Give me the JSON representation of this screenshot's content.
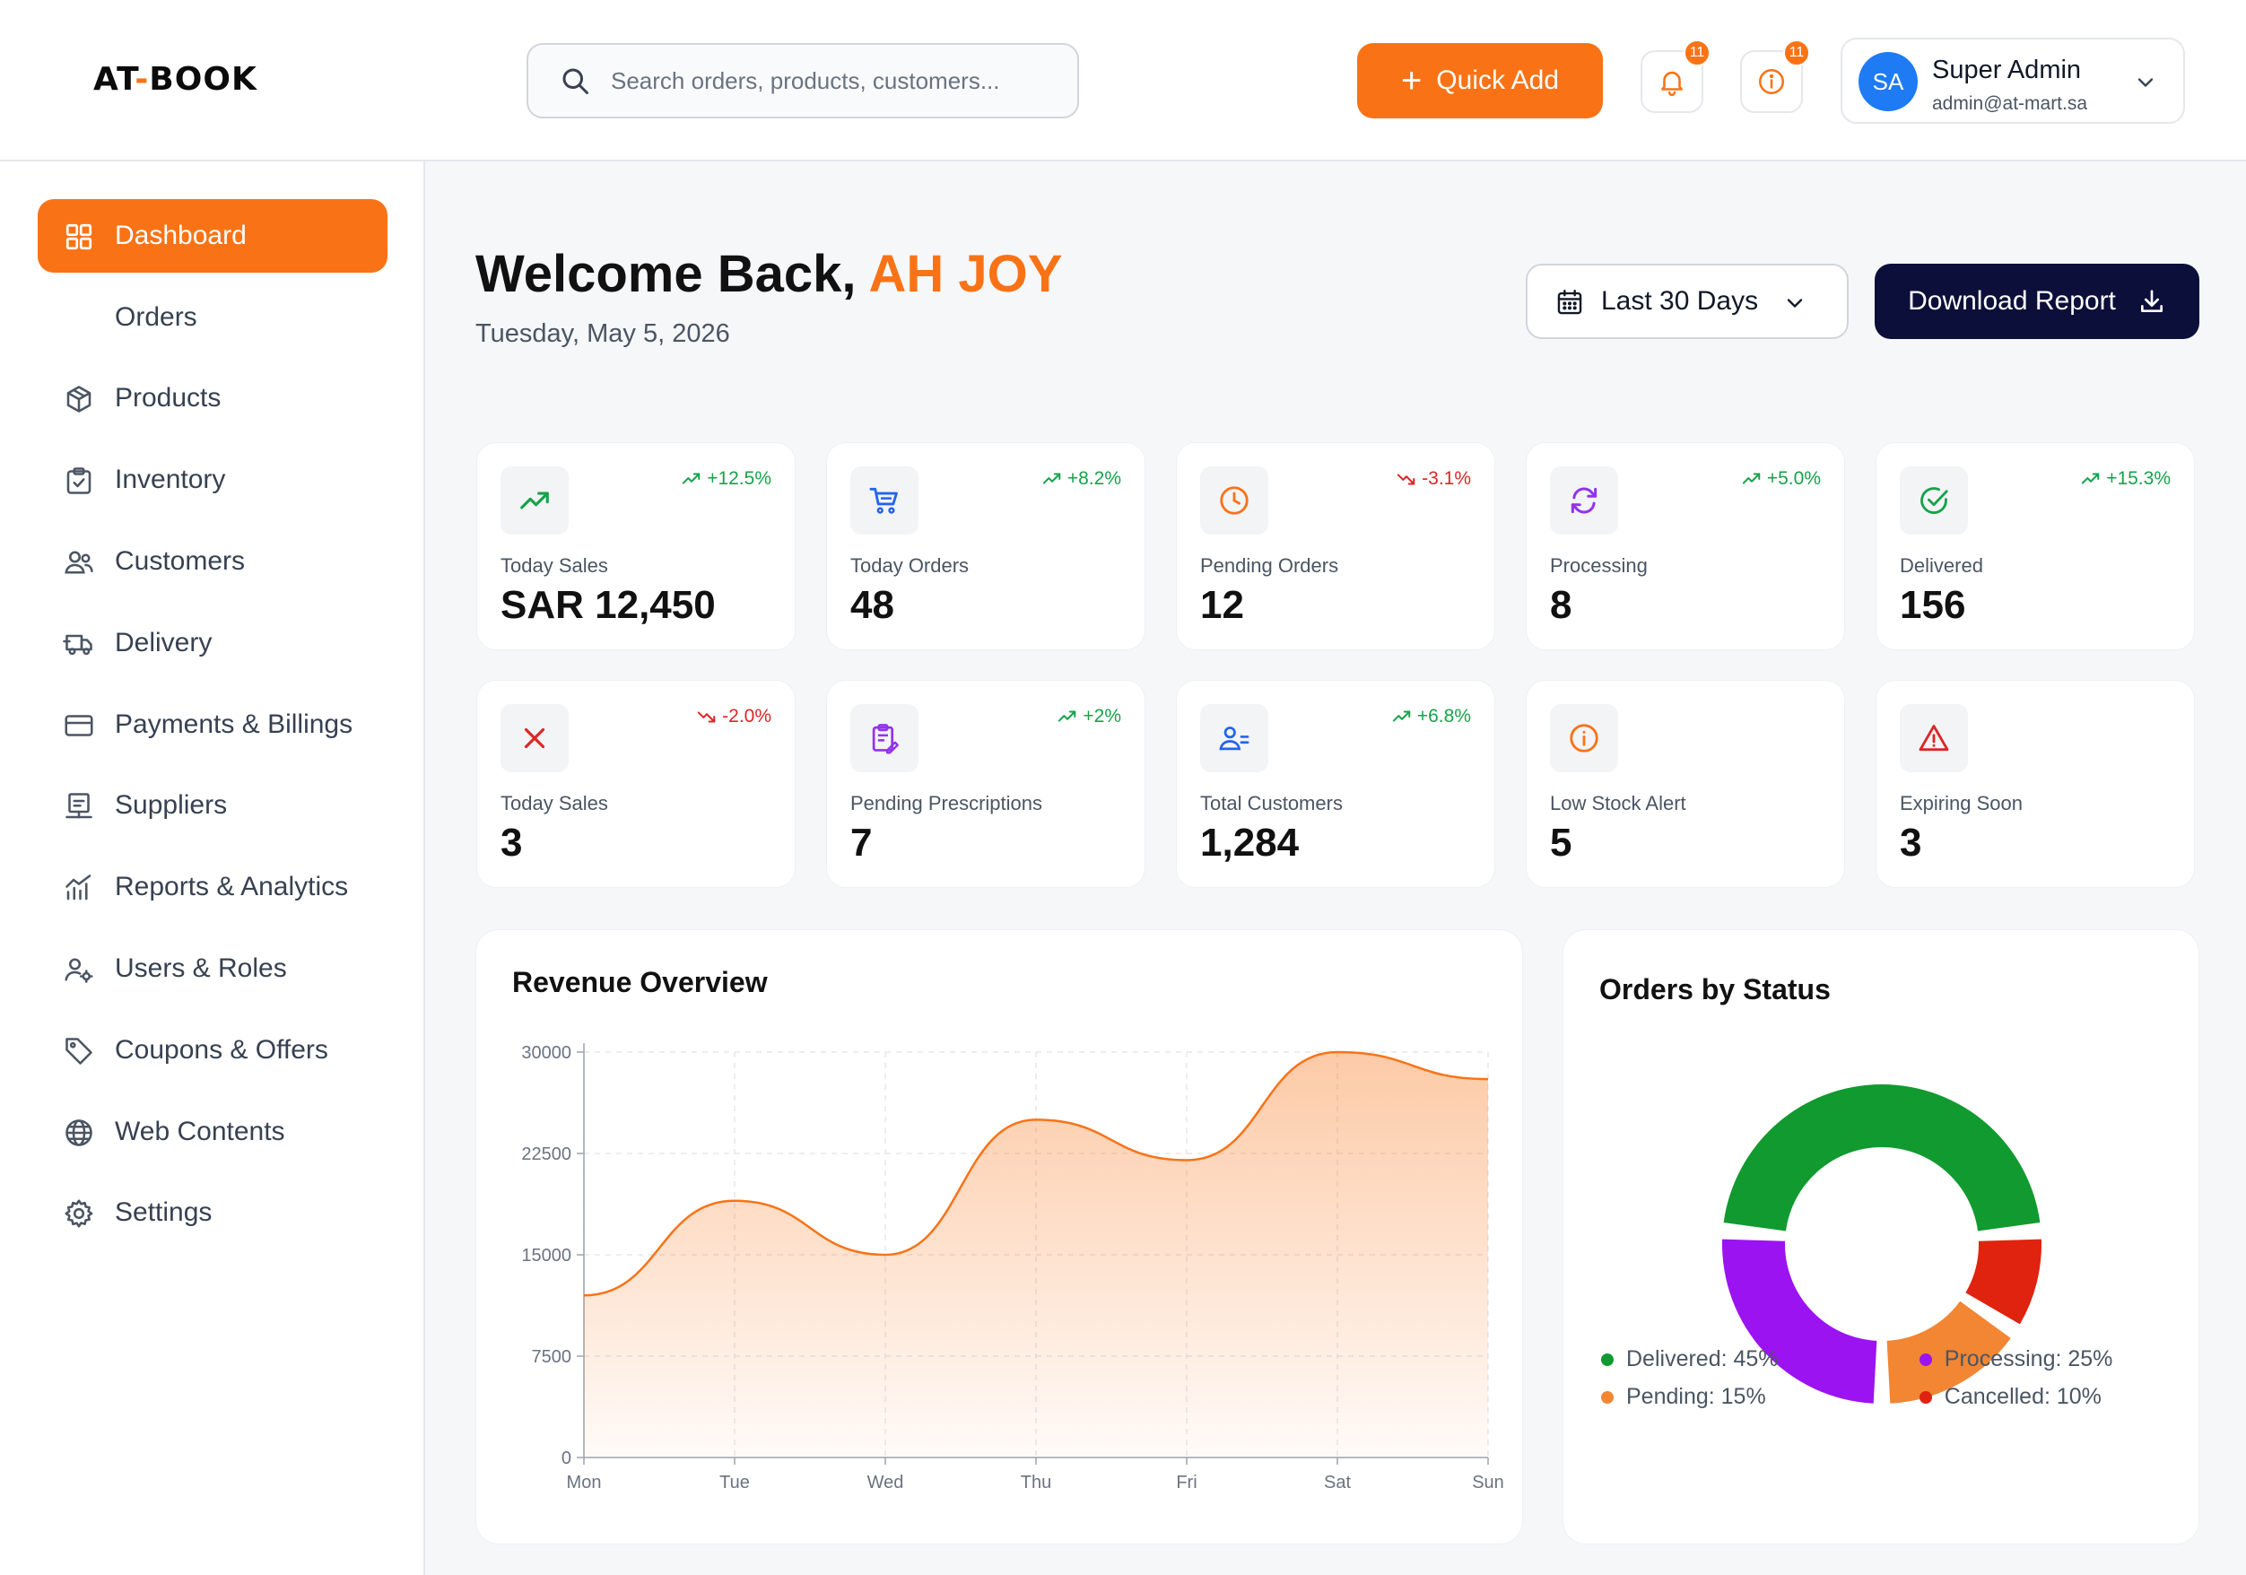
{
  "header": {
    "logo_left": "AT",
    "logo_sep": "-",
    "logo_right": "BOOK",
    "search_placeholder": "Search orders, products, customers...",
    "quick_add_label": "Quick Add",
    "notifications_count": "11",
    "alerts_count": "11",
    "user": {
      "initials": "SA",
      "name": "Super Admin",
      "email": "admin@at-mart.sa"
    }
  },
  "sidebar": {
    "items": [
      {
        "label": "Dashboard",
        "icon": "grid-icon"
      },
      {
        "label": "Orders",
        "icon": ""
      },
      {
        "label": "Products",
        "icon": "box-icon"
      },
      {
        "label": "Inventory",
        "icon": "clipboard-check-icon"
      },
      {
        "label": "Customers",
        "icon": "users-icon"
      },
      {
        "label": "Delivery",
        "icon": "truck-icon"
      },
      {
        "label": "Payments & Billings",
        "icon": "credit-card-icon"
      },
      {
        "label": "Suppliers",
        "icon": "supplier-icon"
      },
      {
        "label": "Reports & Analytics",
        "icon": "chart-icon"
      },
      {
        "label": "Users & Roles",
        "icon": "user-gear-icon"
      },
      {
        "label": "Coupons & Offers",
        "icon": "tag-icon"
      },
      {
        "label": "Web Contents",
        "icon": "globe-icon"
      },
      {
        "label": "Settings",
        "icon": "gear-icon"
      }
    ]
  },
  "main": {
    "welcome_prefix": "Welcome Back,",
    "welcome_name": "AH JOY",
    "date": "Tuesday, May 5, 2026",
    "range_label": "Last 30 Days",
    "download_label": "Download Report"
  },
  "stats": [
    {
      "label": "Today Sales",
      "value": "SAR 12,450",
      "trend": "+12.5%",
      "direction": "up",
      "icon": "trending-up-icon",
      "color": "#16a34a"
    },
    {
      "label": "Today Orders",
      "value": "48",
      "trend": "+8.2%",
      "direction": "up",
      "icon": "cart-icon",
      "color": "#2563eb"
    },
    {
      "label": "Pending Orders",
      "value": "12",
      "trend": "-3.1%",
      "direction": "down",
      "icon": "clock-icon",
      "color": "#f97316"
    },
    {
      "label": "Processing",
      "value": "8",
      "trend": "+5.0%",
      "direction": "up",
      "icon": "refresh-icon",
      "color": "#9333ea"
    },
    {
      "label": "Delivered",
      "value": "156",
      "trend": "+15.3%",
      "direction": "up",
      "icon": "check-circle-icon",
      "color": "#16a34a"
    },
    {
      "label": "Today Sales",
      "value": "3",
      "trend": "-2.0%",
      "direction": "down",
      "icon": "x-icon",
      "color": "#dc2626"
    },
    {
      "label": "Pending Prescriptions",
      "value": "7",
      "trend": "+2%",
      "direction": "up",
      "icon": "prescription-icon",
      "color": "#9333ea"
    },
    {
      "label": "Total Customers",
      "value": "1,284",
      "trend": "+6.8%",
      "direction": "up",
      "icon": "users-icon",
      "color": "#2563eb"
    },
    {
      "label": "Low Stock Alert",
      "value": "5",
      "trend": "",
      "direction": "none",
      "icon": "info-icon",
      "color": "#f97316"
    },
    {
      "label": "Expiring Soon",
      "value": "3",
      "trend": "",
      "direction": "none",
      "icon": "warning-icon",
      "color": "#dc2626"
    }
  ],
  "revenue": {
    "title": "Revenue Overview"
  },
  "orders_status": {
    "title": "Orders by Status"
  },
  "chart_data": [
    {
      "type": "area",
      "title": "Revenue Overview",
      "categories": [
        "Mon",
        "Tue",
        "Wed",
        "Thu",
        "Fri",
        "Sat",
        "Sun"
      ],
      "values": [
        12000,
        19000,
        15000,
        25000,
        22000,
        30000,
        28000
      ],
      "yticks": [
        0,
        7500,
        15000,
        22500,
        30000
      ],
      "ylim": [
        0,
        30000
      ],
      "grid": true,
      "color": "#f97316"
    },
    {
      "type": "pie",
      "title": "Orders by Status",
      "donut": true,
      "slices": [
        {
          "label": "Delivered",
          "value": 45,
          "legend": "Delivered: 45%",
          "color": "#119a2f"
        },
        {
          "label": "Cancelled",
          "value": 10,
          "legend": "Cancelled: 10%",
          "color": "#e0230f"
        },
        {
          "label": "Pending",
          "value": 15,
          "legend": "Pending: 15%",
          "color": "#f28633"
        },
        {
          "label": "Processing",
          "value": 25,
          "legend": "Processing: 25%",
          "color": "#9b13f0"
        }
      ],
      "legend_position": "bottom"
    }
  ]
}
